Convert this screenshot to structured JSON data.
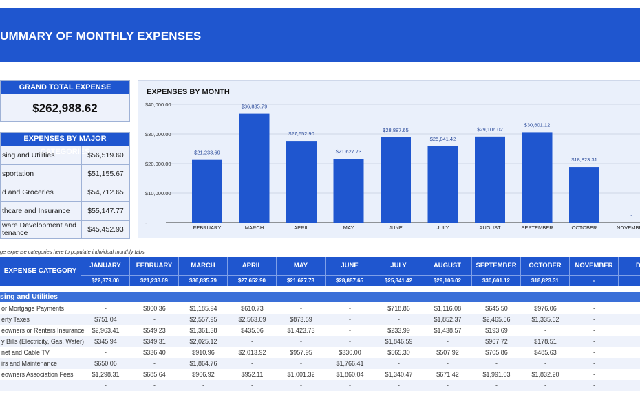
{
  "title": "UMMARY OF MONTHLY EXPENSES",
  "grand_total": {
    "label": "GRAND TOTAL EXPENSE",
    "value": "$262,988.62"
  },
  "major_categories": {
    "label": "EXPENSES BY MAJOR CATEGORIES",
    "items": [
      {
        "name": "sing and Utilities",
        "value": "$56,519.60"
      },
      {
        "name": "sportation",
        "value": "$51,155.67"
      },
      {
        "name": "d and Groceries",
        "value": "$54,712.65"
      },
      {
        "name": "thcare and Insurance",
        "value": "$55,147.77"
      },
      {
        "name": "ware Development and\ntenance",
        "value": "$45,452.93"
      }
    ]
  },
  "chart_data": {
    "type": "bar",
    "title": "EXPENSES BY MONTH",
    "categories": [
      "FEBRUARY",
      "MARCH",
      "APRIL",
      "MAY",
      "JUNE",
      "JULY",
      "AUGUST",
      "SEPTEMBER",
      "OCTOBER",
      "NOVEMBER"
    ],
    "values": [
      21233.69,
      36835.79,
      27652.9,
      21627.73,
      28887.65,
      25841.42,
      29106.02,
      30601.12,
      18823.31,
      0
    ],
    "labels": [
      "$21,233.69",
      "$36,835.79",
      "$27,652.90",
      "$21,627.73",
      "$28,887.65",
      "$25,841.42",
      "$29,106.02",
      "$30,601.12",
      "$18,823.31",
      "-"
    ],
    "ylim": [
      0,
      40000
    ],
    "yticks": [
      "-",
      "$10,000.00",
      "$20,000.00",
      "$30,000.00",
      "$40,000.00"
    ],
    "grid": true,
    "bar_color": "#1f56cf"
  },
  "note": "ge expense categories here to populate individual monthly tabs.",
  "table": {
    "category_header": "EXPENSE CATEGORY",
    "months": [
      "JANUARY",
      "FEBRUARY",
      "MARCH",
      "APRIL",
      "MAY",
      "JUNE",
      "JULY",
      "AUGUST",
      "SEPTEMBER",
      "OCTOBER",
      "NOVEMBER",
      "DEC"
    ],
    "totals": [
      "$22,379.00",
      "$21,233.69",
      "$36,835.79",
      "$27,652.90",
      "$21,627.73",
      "$28,887.65",
      "$25,841.42",
      "$29,106.02",
      "$30,601.12",
      "$18,823.31",
      "-",
      ""
    ],
    "section": "sing and Utilities",
    "rows": [
      {
        "name": "or Mortgage Payments",
        "values": [
          "-",
          "$860.36",
          "$1,185.94",
          "$610.73",
          "-",
          "-",
          "$718.86",
          "$1,116.08",
          "$645.50",
          "$976.06",
          "-"
        ]
      },
      {
        "name": "erty Taxes",
        "values": [
          "$751.04",
          "-",
          "$2,557.95",
          "$2,563.09",
          "$873.59",
          "-",
          "-",
          "$1,852.37",
          "$2,465.56",
          "$1,335.62",
          "-"
        ]
      },
      {
        "name": "eowners or Renters Insurance",
        "values": [
          "$2,963.41",
          "$549.23",
          "$1,361.38",
          "$435.06",
          "$1,423.73",
          "-",
          "$233.99",
          "$1,438.57",
          "$193.69",
          "-",
          "-"
        ]
      },
      {
        "name": "y Bills (Electricity, Gas, Water)",
        "values": [
          "$345.94",
          "$349.31",
          "$2,025.12",
          "-",
          "-",
          "-",
          "$1,846.59",
          "-",
          "$967.72",
          "$178.51",
          "-"
        ]
      },
      {
        "name": "net and Cable TV",
        "values": [
          "-",
          "$336.40",
          "$910.96",
          "$2,013.92",
          "$957.95",
          "$330.00",
          "$565.30",
          "$507.92",
          "$705.86",
          "$485.63",
          "-"
        ]
      },
      {
        "name": "irs and Maintenance",
        "values": [
          "$650.06",
          "-",
          "$1,864.76",
          "-",
          "-",
          "$1,766.41",
          "-",
          "-",
          "-",
          "-",
          "-"
        ]
      },
      {
        "name": "eowners Association Fees",
        "values": [
          "$1,298.31",
          "$685.64",
          "$966.92",
          "$952.11",
          "$1,001.32",
          "$1,860.04",
          "$1,340.47",
          "$671.42",
          "$1,991.03",
          "$1,832.20",
          "-"
        ]
      },
      {
        "name": "",
        "values": [
          "-",
          "-",
          "-",
          "-",
          "-",
          "-",
          "-",
          "-",
          "-",
          "-",
          "-"
        ]
      }
    ]
  }
}
